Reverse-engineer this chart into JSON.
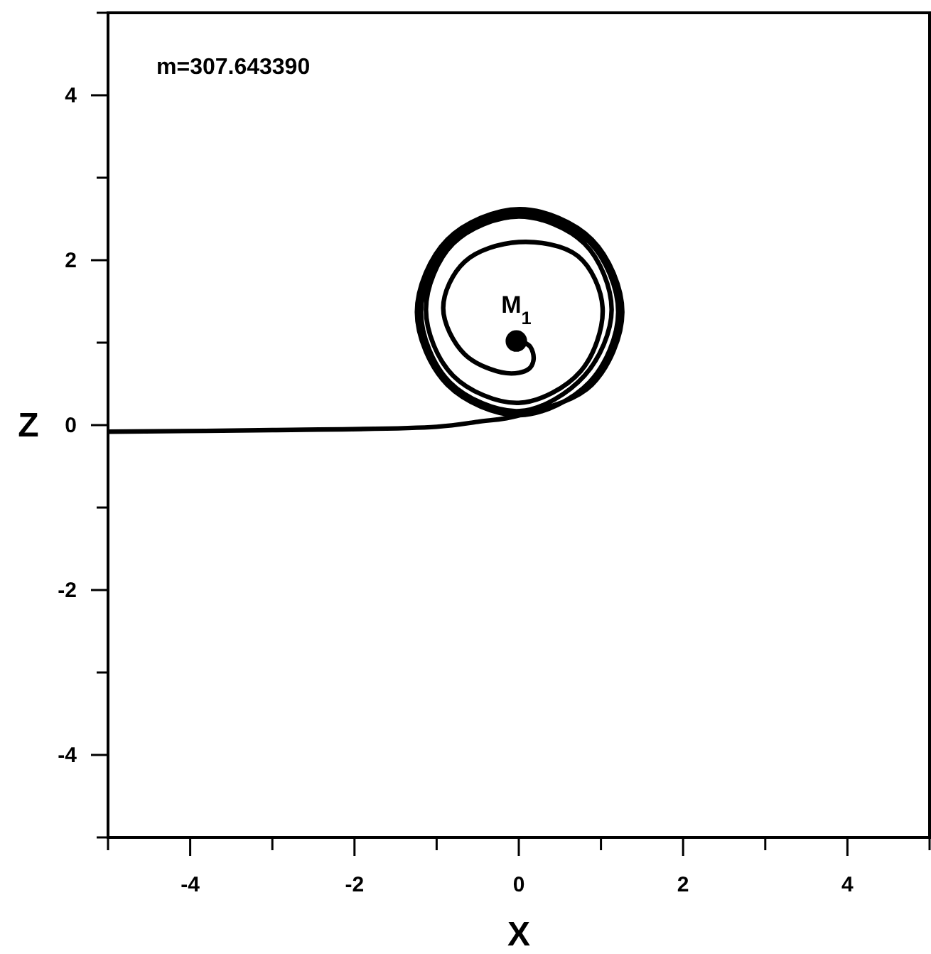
{
  "chart_data": {
    "type": "line",
    "xlabel": "X",
    "ylabel": "Z",
    "xlim": [
      -5,
      5
    ],
    "ylim": [
      -5,
      5
    ],
    "xticks": [
      {
        "value": -5,
        "label": null
      },
      -4,
      {
        "value": -3,
        "label": null
      },
      -2,
      {
        "value": -1,
        "label": null
      },
      0,
      {
        "value": 1,
        "label": null
      },
      2,
      {
        "value": 3,
        "label": null
      },
      4,
      {
        "value": 5,
        "label": null
      }
    ],
    "yticks": [
      {
        "value": -5,
        "label": null
      },
      -4,
      {
        "value": -3,
        "label": null
      },
      -2,
      {
        "value": -1,
        "label": null
      },
      0,
      {
        "value": 1,
        "label": null
      },
      2,
      {
        "value": 3,
        "label": null
      },
      4,
      {
        "value": 5,
        "label": null
      }
    ],
    "annotations": [
      "m=307.643390",
      {
        "text": "M$_{1}$",
        "x": -0.03,
        "y": 1.02
      }
    ],
    "marker": "none",
    "series": [
      {
        "color": "#000000",
        "x": [
          -5,
          -3,
          -1,
          -0.5,
          0.01,
          0.89,
          1.26,
          0.89,
          0.01,
          -0.87,
          -1.24,
          -0.87,
          0.01,
          0.86,
          1.21,
          0.86,
          0.01,
          -0.84,
          -1.19,
          -0.84,
          0.01,
          0.8,
          1.13,
          0.8,
          0,
          -0.8,
          -1.13,
          -0.8,
          0,
          0.75,
          1.02,
          0.72,
          0,
          -0.66,
          -0.92,
          -0.66,
          -0.15,
          0.12,
          0.18,
          0.14,
          0.03
        ],
        "values": [
          -0.08,
          -0.06,
          -0.02,
          0.04,
          0.12,
          0.49,
          1.37,
          2.25,
          2.62,
          2.25,
          1.37,
          0.49,
          0.12,
          0.52,
          1.37,
          2.22,
          2.57,
          2.22,
          1.37,
          0.52,
          0.17,
          0.6,
          1.4,
          2.2,
          2.53,
          2.2,
          1.4,
          0.6,
          0.27,
          0.65,
          1.42,
          2.05,
          2.22,
          1.98,
          1.42,
          0.86,
          0.63,
          0.68,
          0.8,
          0.95,
          1.02
        ]
      },
      {
        "type": "scatter",
        "marker": "circle",
        "color": "#000000",
        "x": [
          -0.03
        ],
        "values": [
          1.02
        ]
      }
    ]
  }
}
